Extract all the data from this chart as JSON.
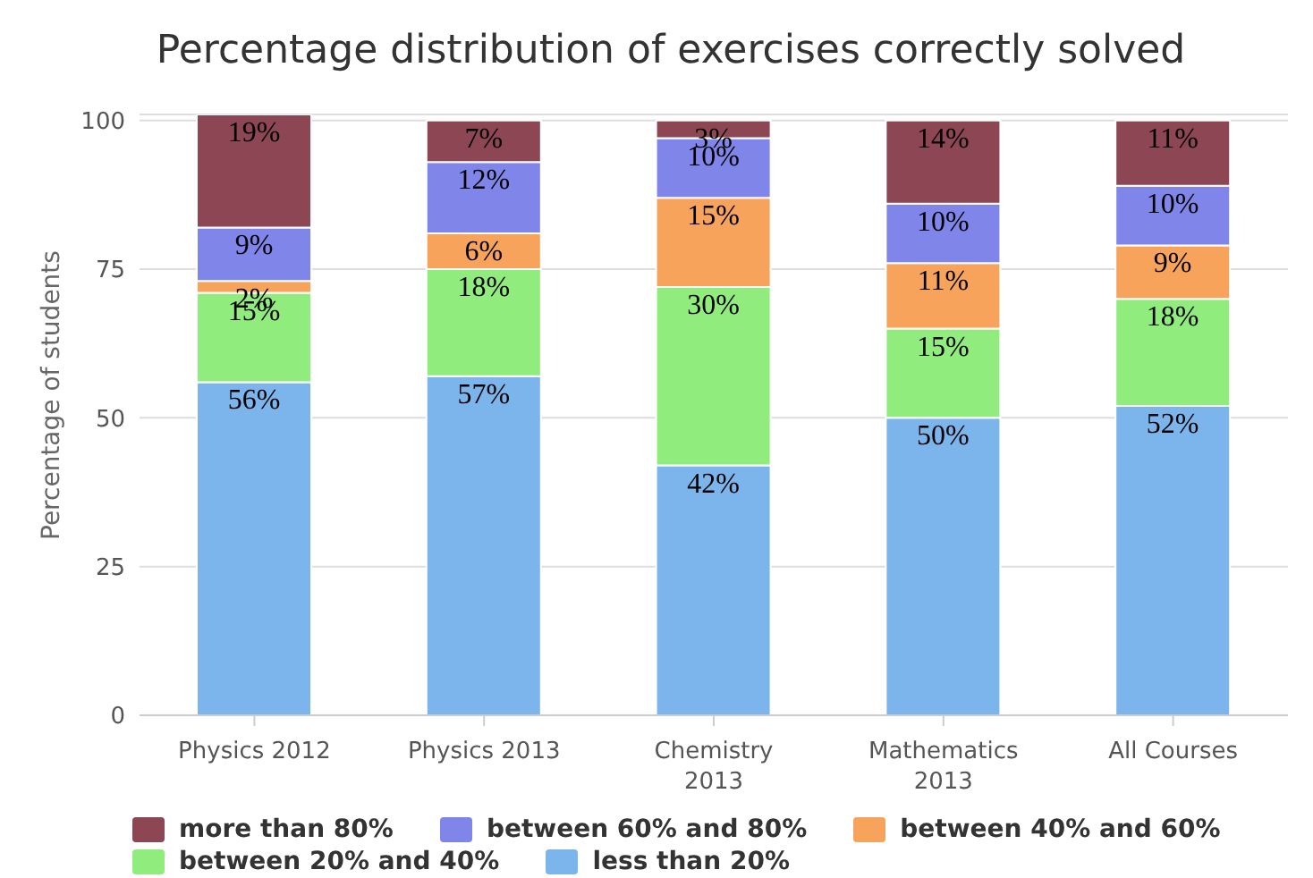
{
  "chart_data": {
    "type": "bar",
    "title": "Percentage distribution of exercises correctly solved",
    "ylabel": "Percentage of students",
    "categories": [
      "Physics 2012",
      "Physics 2013",
      "Chemistry 2013",
      "Mathematics 2013",
      "All Courses"
    ],
    "stacked": true,
    "ylim": [
      0,
      101
    ],
    "yticks": [
      0,
      25,
      50,
      75,
      100
    ],
    "grid": "y",
    "legend": "bottom",
    "series": [
      {
        "name": "less than 20%",
        "color": "#7cb5ec",
        "values": [
          56,
          57,
          42,
          50,
          52
        ],
        "value_labels": [
          "56%",
          "57%",
          "42%",
          "50%",
          "52%"
        ]
      },
      {
        "name": "between 20% and 40%",
        "color": "#90ed7d",
        "values": [
          15,
          18,
          30,
          15,
          18
        ],
        "value_labels": [
          "15%",
          "18%",
          "30%",
          "15%",
          "18%"
        ]
      },
      {
        "name": "between 40% and 60%",
        "color": "#f7a35c",
        "values": [
          2,
          6,
          15,
          11,
          9
        ],
        "value_labels": [
          "2%",
          "6%",
          "15%",
          "11%",
          "9%"
        ]
      },
      {
        "name": "between 60% and 80%",
        "color": "#8085e9",
        "values": [
          9,
          12,
          10,
          10,
          10
        ],
        "value_labels": [
          "9%",
          "12%",
          "10%",
          "10%",
          "10%"
        ]
      },
      {
        "name": "more than 80%",
        "color": "#8d4653",
        "values": [
          19,
          7,
          3,
          14,
          11
        ],
        "value_labels": [
          "19%",
          "7%",
          "3%",
          "14%",
          "11%"
        ]
      }
    ]
  }
}
